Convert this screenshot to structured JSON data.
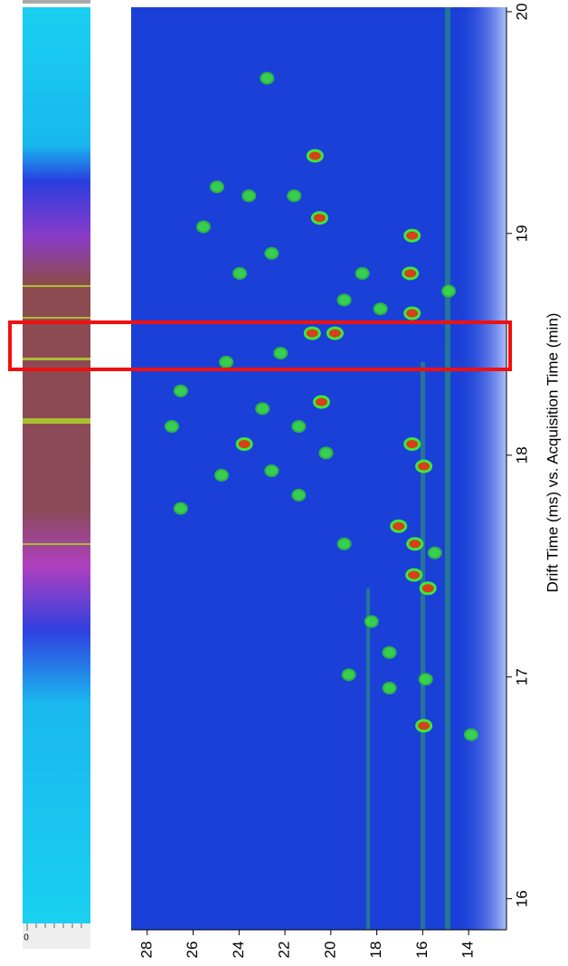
{
  "chart_data": {
    "type": "scatter",
    "axis_title": "Drift Time (ms) vs. Acquisition Time (min)",
    "strip_label": "0",
    "xlim": [
      28.7,
      12.35
    ],
    "xticks": [
      28,
      26,
      24,
      22,
      20,
      18,
      16,
      14
    ],
    "ylim": [
      15.86,
      20.02
    ],
    "yticks": [
      16,
      17,
      18,
      19,
      20
    ],
    "background": "#1b40d8",
    "series": [
      {
        "color": "#d6401a",
        "x": [
          16.34,
          16.38,
          16.54,
          16.46,
          19.82,
          20.81,
          20.41,
          16.46,
          15.95,
          15.95,
          20.69,
          20.49,
          23.77,
          17.05,
          15.77,
          16.46
        ],
        "y": [
          17.6,
          17.46,
          18.82,
          18.64,
          18.55,
          18.55,
          18.24,
          18.05,
          17.95,
          16.78,
          19.35,
          19.07,
          18.05,
          17.68,
          17.4,
          18.99
        ]
      },
      {
        "color": "#3ee83a",
        "x": [
          24.96,
          23.57,
          21.6,
          23.97,
          22.58,
          19.42,
          18.63,
          17.84,
          22.19,
          24.56,
          26.54,
          22.98,
          21.4,
          24.76,
          22.58,
          21.4,
          19.42,
          18.23,
          19.22,
          17.45,
          15.87,
          15.47,
          14.87,
          26.93,
          22.78,
          25.55,
          20.21,
          17.45,
          13.89,
          26.54
        ],
        "y": [
          19.21,
          19.17,
          19.17,
          18.82,
          18.91,
          18.7,
          18.82,
          18.66,
          18.46,
          18.42,
          18.29,
          18.21,
          18.13,
          17.91,
          17.93,
          17.82,
          17.6,
          17.25,
          17.01,
          17.11,
          16.99,
          17.56,
          18.74,
          18.13,
          19.7,
          19.03,
          18.01,
          16.95,
          16.74,
          17.76
        ]
      }
    ]
  }
}
